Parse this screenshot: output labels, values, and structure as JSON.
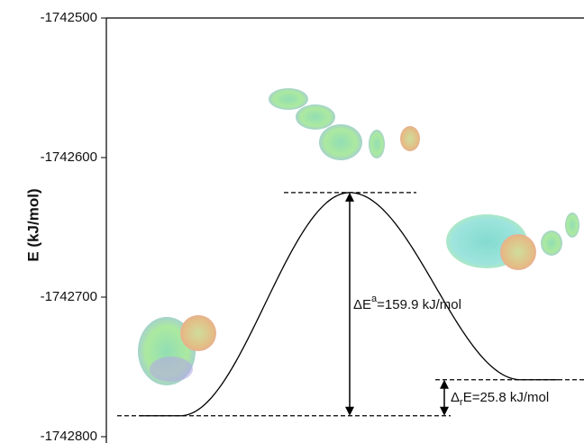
{
  "chart_data": {
    "type": "energy-profile",
    "y_label": "E (kJ/mol)",
    "values": [
      -1742785,
      -1742625.1,
      -1742759.2
    ],
    "ylim": [
      -1742800,
      -1742500
    ],
    "yticks": [
      -1742800,
      -1742700,
      -1742600,
      -1742500
    ],
    "annotations": [
      [
        "ΔE",
        "a",
        "=159.9 kJ/mol"
      ],
      [
        "Δ",
        "r",
        "E=25.8 kJ/mol"
      ]
    ]
  }
}
